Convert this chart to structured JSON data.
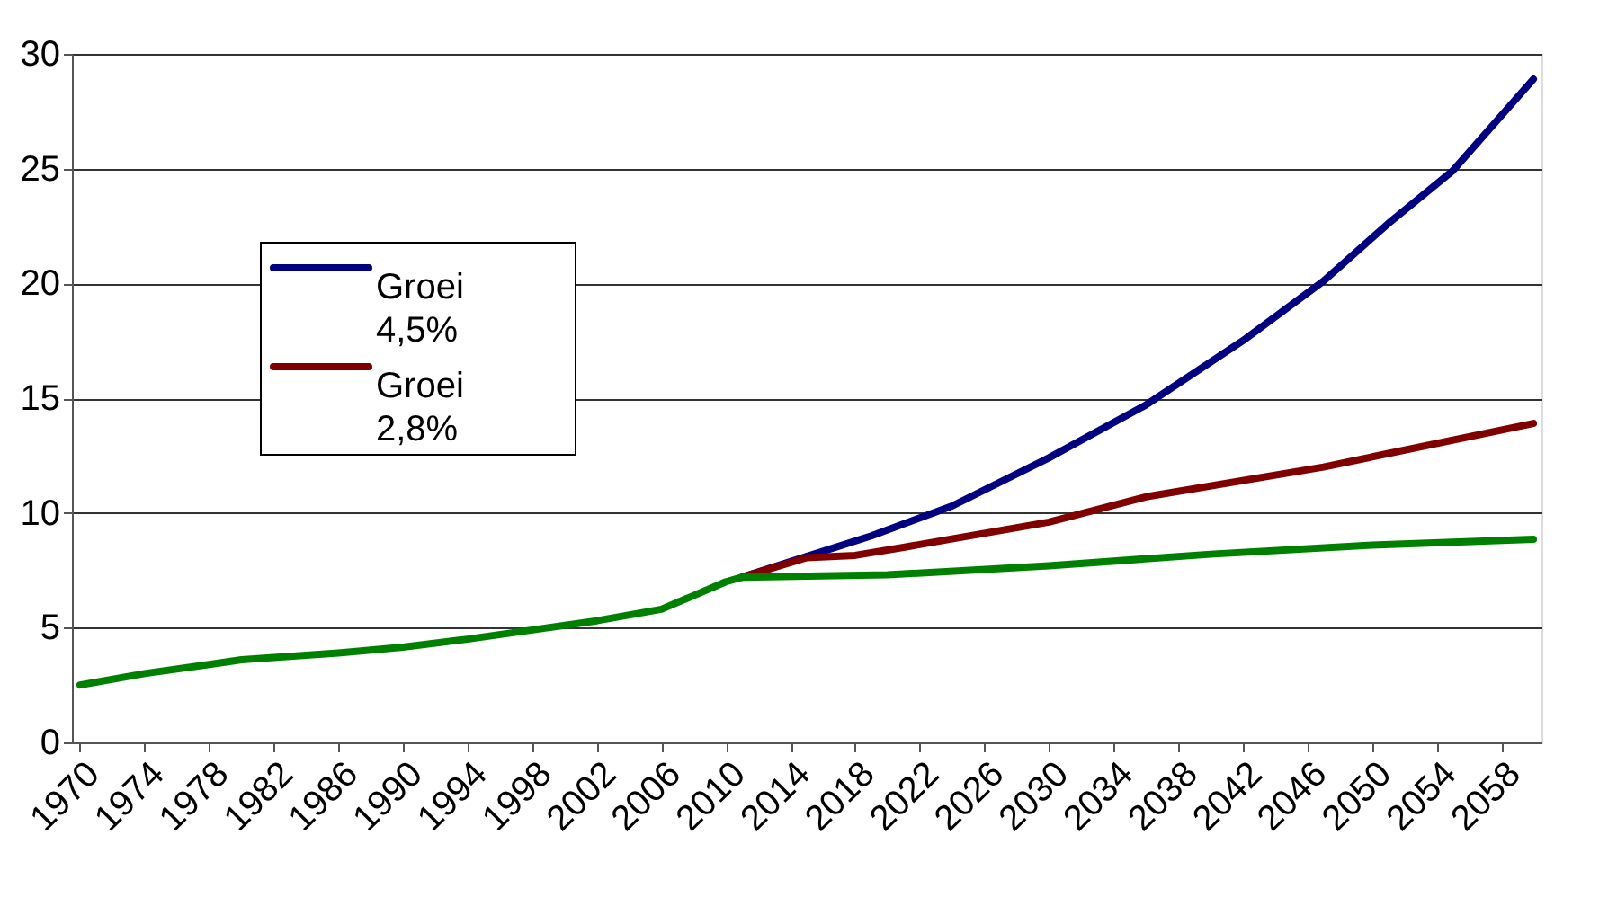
{
  "chart_data": {
    "type": "line",
    "xlim": [
      1969.5,
      2060.5
    ],
    "xticks": [
      1970,
      1974,
      1978,
      1982,
      1986,
      1990,
      1994,
      1998,
      2002,
      2006,
      2010,
      2014,
      2018,
      2022,
      2026,
      2030,
      2034,
      2038,
      2042,
      2046,
      2050,
      2054,
      2058
    ],
    "ylim": [
      0,
      30
    ],
    "yticks": [
      0,
      5,
      10,
      15,
      20,
      25,
      30
    ],
    "grid": "y",
    "legend": "top left",
    "line_style": "solid",
    "marker": "none",
    "series": [
      {
        "name": "Groei 4,5%",
        "color": "#000080",
        "x": [
          2011,
          2015,
          2019,
          2024,
          2030,
          2036,
          2042,
          2047,
          2051,
          2055,
          2060
        ],
        "values": [
          7.2,
          8.1,
          9.0,
          10.3,
          12.4,
          14.7,
          17.5,
          20.1,
          22.6,
          24.9,
          28.9
        ]
      },
      {
        "name": "Groei 2,8%",
        "color": "#800000",
        "x": [
          2011,
          2015,
          2018,
          2021,
          2030,
          2036,
          2047,
          2060
        ],
        "values": [
          7.2,
          8.05,
          8.15,
          8.5,
          9.6,
          10.7,
          12.0,
          13.9
        ]
      },
      {
        "color": "#008000",
        "x": [
          1970,
          1974,
          1978,
          1980,
          1986,
          1990,
          1994,
          1998,
          2002,
          2006,
          2008,
          2010,
          2011,
          2020,
          2030,
          2040,
          2050,
          2060
        ],
        "values": [
          2.5,
          3.0,
          3.4,
          3.6,
          3.9,
          4.15,
          4.5,
          4.9,
          5.3,
          5.8,
          6.4,
          7.0,
          7.2,
          7.3,
          7.7,
          8.2,
          8.6,
          8.85
        ]
      }
    ]
  }
}
